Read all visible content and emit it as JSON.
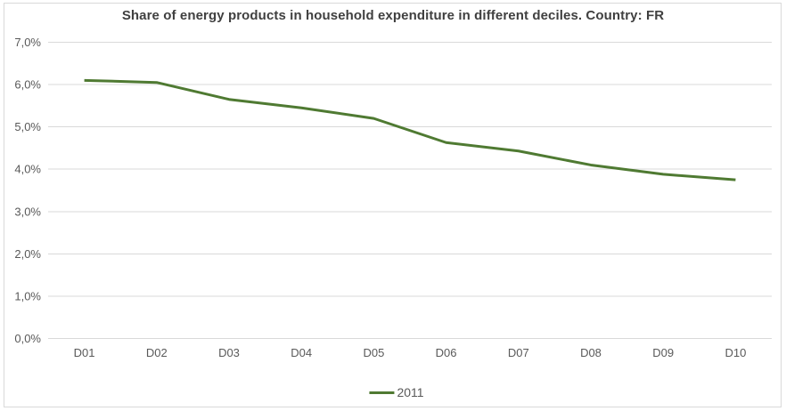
{
  "frame": {
    "background": "#ffffff",
    "border_color": "#d9d9d9"
  },
  "chart_data": {
    "type": "line",
    "title": "Share of energy products in household expenditure in different deciles. Country: FR",
    "xlabel": "",
    "ylabel": "",
    "categories": [
      "D01",
      "D02",
      "D03",
      "D04",
      "D05",
      "D06",
      "D07",
      "D08",
      "D09",
      "D10"
    ],
    "series": [
      {
        "name": "2011",
        "values": [
          6.1,
          6.05,
          5.65,
          5.45,
          5.2,
          4.63,
          4.43,
          4.1,
          3.88,
          3.75
        ],
        "color": "#4f7a32"
      }
    ],
    "ylim": [
      0,
      7
    ],
    "ytick_step": 1,
    "ytick_labels": [
      "0,0%",
      "1,0%",
      "2,0%",
      "3,0%",
      "4,0%",
      "5,0%",
      "6,0%",
      "7,0%"
    ],
    "grid": true,
    "legend_position": "bottom",
    "colors": {
      "gridline": "#d9d9d9",
      "axis_text": "#595959",
      "title_text": "#404040",
      "legend_text": "#595959"
    }
  }
}
